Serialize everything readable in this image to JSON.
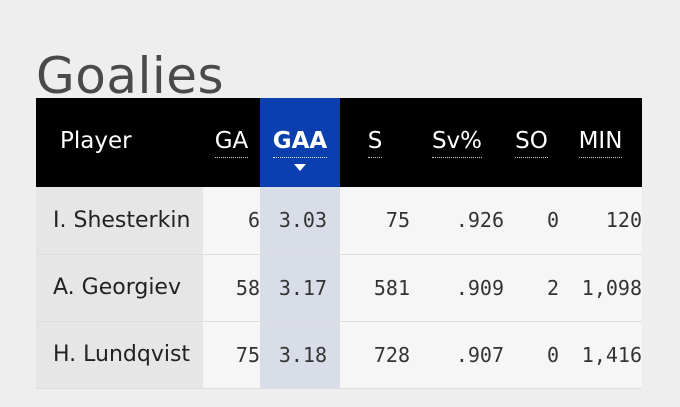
{
  "page": {
    "title": "Goalies"
  },
  "table": {
    "columns": [
      {
        "key": "player",
        "label": "Player"
      },
      {
        "key": "ga",
        "label": "GA"
      },
      {
        "key": "gaa",
        "label": "GAA",
        "sorted": "descending"
      },
      {
        "key": "s",
        "label": "S"
      },
      {
        "key": "sv_pct",
        "label": "Sv%"
      },
      {
        "key": "so",
        "label": "SO"
      },
      {
        "key": "min",
        "label": "MIN"
      }
    ],
    "rows": [
      {
        "player": "I. Shesterkin",
        "ga": "6",
        "gaa": "3.03",
        "s": "75",
        "sv_pct": ".926",
        "so": "0",
        "min": "120"
      },
      {
        "player": "A. Georgiev",
        "ga": "58",
        "gaa": "3.17",
        "s": "581",
        "sv_pct": ".909",
        "so": "2",
        "min": "1,098"
      },
      {
        "player": "H. Lundqvist",
        "ga": "75",
        "gaa": "3.18",
        "s": "728",
        "sv_pct": ".907",
        "so": "0",
        "min": "1,416"
      }
    ]
  },
  "colors": {
    "header_bg": "#000000",
    "sorted_header_bg": "#0b3fb0",
    "sorted_cell_bg": "#d9dde7"
  }
}
